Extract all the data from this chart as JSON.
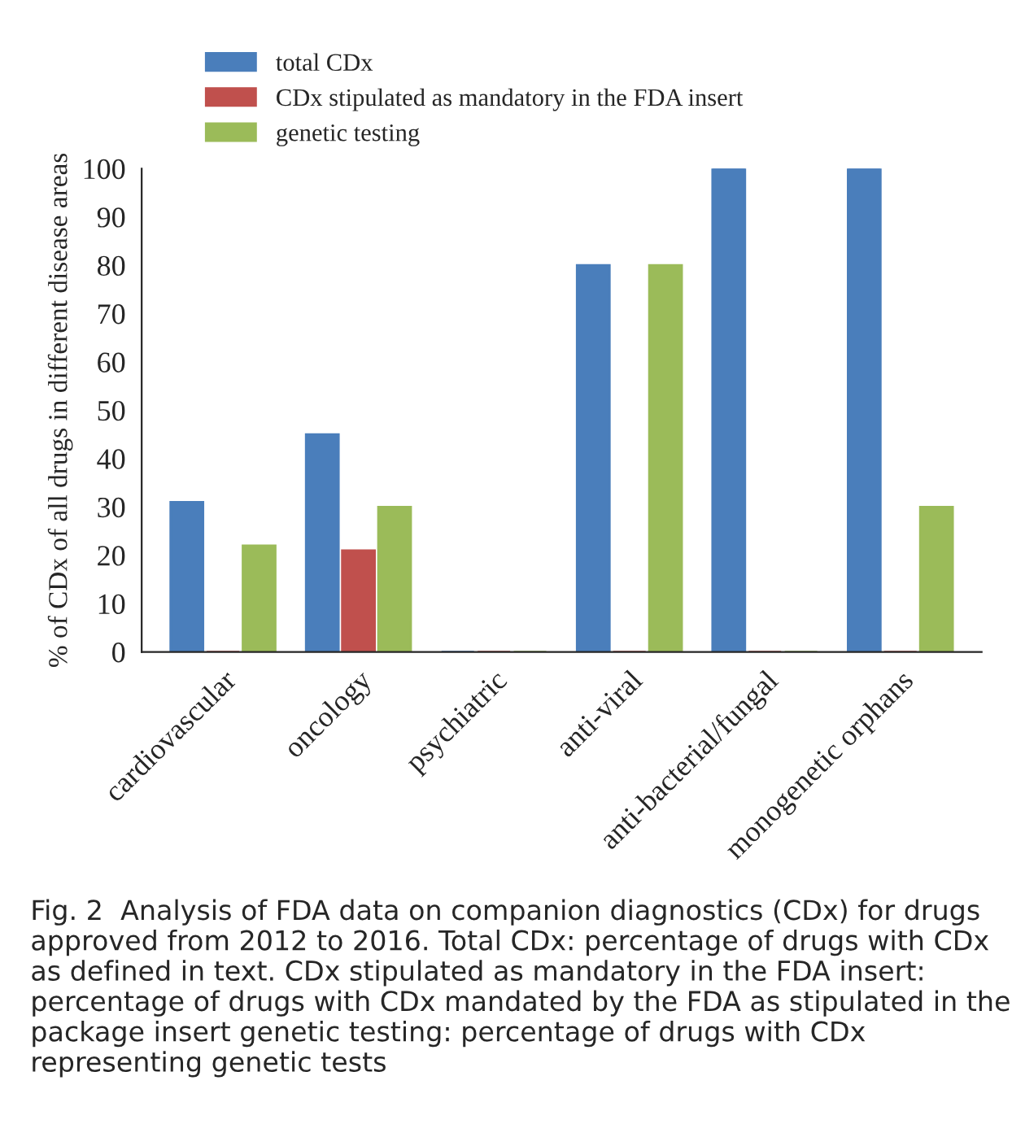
{
  "chart_data": {
    "type": "bar",
    "ylabel": "% of CDx of all drugs in different disease areas",
    "categories": [
      "cardiovascular",
      "oncology",
      "psychiatric",
      "anti-viral",
      "anti-bacterial/fungal",
      "monogenetic orphans"
    ],
    "series": [
      {
        "name": "total CDx",
        "color": "#4a7ebb",
        "values": [
          31,
          45,
          0,
          80,
          100,
          100
        ]
      },
      {
        "name": "CDx stipulated as mandatory in the FDA insert",
        "color": "#c0504d",
        "values": [
          0,
          21,
          0,
          0,
          0,
          0
        ]
      },
      {
        "name": "genetic testing",
        "color": "#9bbb59",
        "values": [
          22,
          30,
          0,
          80,
          0,
          30
        ]
      }
    ],
    "ylim": [
      0,
      100
    ],
    "yticks": [
      0,
      10,
      20,
      30,
      40,
      50,
      60,
      70,
      80,
      90,
      100
    ],
    "grid": false,
    "legend": "top left",
    "annotations": [
      "Fig. 2  Analysis of FDA data on companion diagnostics (CDx) for drugs approved from 2012 to 2016. Total CDx: percentage of drugs with CDx as defined in text. CDx stipulated as mandatory in the FDA insert: percentage of drugs with CDx mandated by the FDA as stipulated in the package insert genetic testing: percentage of drugs with CDx representing genetic tests"
    ]
  }
}
